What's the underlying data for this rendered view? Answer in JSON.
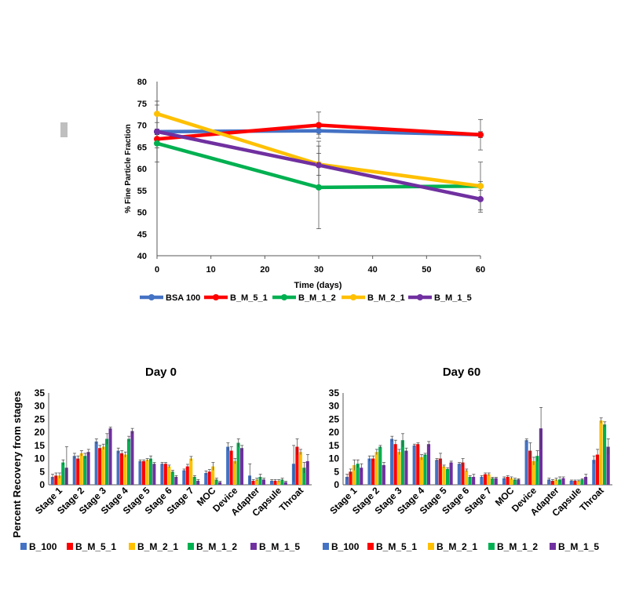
{
  "chart_data": [
    {
      "type": "line",
      "title": "",
      "xlabel": "Time (days)",
      "ylabel": "% Fine Particle Fraction",
      "xlim": [
        0,
        60
      ],
      "ylim": [
        40,
        80
      ],
      "xticks": [
        "0",
        "10",
        "20",
        "30",
        "40",
        "50",
        "60"
      ],
      "yticks": [
        "40",
        "45",
        "50",
        "55",
        "60",
        "65",
        "70",
        "75",
        "80"
      ],
      "legend_position": "bottom",
      "x": [
        0,
        30,
        60
      ],
      "series": [
        {
          "name": "BSA 100",
          "color": "#4472C4",
          "values": [
            68.5,
            68.7,
            67.8
          ],
          "errors": [
            0.6,
            0.8,
            0.7
          ]
        },
        {
          "name": "B_M_5_1",
          "color": "#FF0000",
          "values": [
            66.8,
            70.0,
            67.8
          ],
          "errors": [
            1.0,
            3.0,
            3.5
          ]
        },
        {
          "name": "B_M_1_2",
          "color": "#00B050",
          "values": [
            65.8,
            55.7,
            56.0
          ],
          "errors": [
            1.0,
            9.5,
            1.0
          ]
        },
        {
          "name": "B_M_2_1",
          "color": "#FFC000",
          "values": [
            72.6,
            61.0,
            56.0
          ],
          "errors": [
            2.0,
            2.5,
            5.5
          ]
        },
        {
          "name": "B_M_1_5",
          "color": "#7030A0",
          "values": [
            68.5,
            60.8,
            53.0
          ],
          "errors": [
            7.0,
            5.5,
            3.0
          ]
        }
      ]
    },
    {
      "type": "bar",
      "title": "Day 0",
      "ylabel": "Percent  Recovery from stages",
      "ylim": [
        0,
        35
      ],
      "yticks": [
        "0",
        "5",
        "10",
        "15",
        "20",
        "25",
        "30",
        "35"
      ],
      "legend_position": "bottom",
      "categories": [
        "Stage 1",
        "Stage 2",
        "Stage 3",
        "Stage 4",
        "Stage 5",
        "Stage 6",
        "Stage 7",
        "MOC",
        "Device",
        "Adapter",
        "Capsule",
        "Throat"
      ],
      "series": [
        {
          "name": "B_100",
          "color": "#4472C4",
          "values": [
            3,
            11,
            16.5,
            13,
            9,
            8,
            5.5,
            4.5,
            14.5,
            3.5,
            1.5,
            8
          ],
          "errors": [
            1,
            1,
            1,
            1,
            0.5,
            0.5,
            0.5,
            0.8,
            1.5,
            4.5,
            0.5,
            7
          ]
        },
        {
          "name": "B_M_5_1",
          "color": "#FF0000",
          "values": [
            3.5,
            10,
            14,
            12,
            9,
            8,
            7,
            5,
            13,
            1.5,
            1.5,
            14.5
          ],
          "errors": [
            1,
            1,
            1,
            1,
            0.5,
            0.5,
            0.8,
            0.8,
            1.5,
            0.5,
            0.5,
            3
          ]
        },
        {
          "name": "B_M_2_1",
          "color": "#FFC000",
          "values": [
            3.5,
            12,
            14.5,
            11.5,
            9.5,
            7,
            10,
            7,
            9,
            2,
            1.5,
            12.5
          ],
          "errors": [
            1,
            1,
            1,
            1,
            0.5,
            0.5,
            0.8,
            1.5,
            1,
            0.5,
            0.5,
            1
          ]
        },
        {
          "name": "B_M_1_2",
          "color": "#00B050",
          "values": [
            8.5,
            11,
            17.5,
            17.5,
            10,
            5,
            3,
            2,
            16,
            3,
            2,
            6.5
          ],
          "errors": [
            1,
            1,
            2,
            1,
            1,
            0.5,
            0.5,
            0.5,
            1.5,
            1,
            0.5,
            2
          ]
        },
        {
          "name": "B_M_1_5",
          "color": "#7030A0",
          "values": [
            6.5,
            12.5,
            21.5,
            20.5,
            8,
            3,
            1.5,
            1,
            14,
            2,
            1,
            9
          ],
          "errors": [
            8,
            1,
            0.5,
            1,
            0.5,
            0.5,
            0.5,
            0.3,
            1,
            0.5,
            0.3,
            2.5
          ]
        }
      ]
    },
    {
      "type": "bar",
      "title": "Day 60",
      "ylabel": "",
      "ylim": [
        0,
        35
      ],
      "yticks": [
        "0",
        "5",
        "10",
        "15",
        "20",
        "25",
        "30",
        "35"
      ],
      "legend_position": "bottom",
      "categories": [
        "Stage 1",
        "Stage 2",
        "Stage 3",
        "Stage 4",
        "Stage 5",
        "Stage 6",
        "Stage 7",
        "MOC",
        "Device",
        "Adapter",
        "Capsule",
        "Throat"
      ],
      "series": [
        {
          "name": "B_100",
          "color": "#4472C4",
          "values": [
            3,
            10,
            17.5,
            15,
            9.5,
            8,
            3,
            2.5,
            17,
            2,
            1.5,
            9.5
          ],
          "errors": [
            1,
            1,
            1,
            0.5,
            0.5,
            0.5,
            0.5,
            0.5,
            0.5,
            0.5,
            0.3,
            1.5
          ]
        },
        {
          "name": "B_M_5_1",
          "color": "#FF0000",
          "values": [
            5,
            10,
            15.5,
            15.5,
            10,
            8.5,
            4,
            3,
            13,
            1.5,
            1.5,
            11.5
          ],
          "errors": [
            1,
            1,
            1.5,
            0.5,
            2,
            1.5,
            0.5,
            0.5,
            3,
            0.5,
            0.3,
            2
          ]
        },
        {
          "name": "B_M_2_1",
          "color": "#FFC000",
          "values": [
            7.5,
            12.5,
            12.5,
            10.5,
            7,
            5.5,
            4,
            2.5,
            9,
            2,
            1.5,
            24.5
          ],
          "errors": [
            2,
            1,
            1,
            1,
            0.5,
            0.5,
            0.5,
            0.5,
            1.5,
            0.5,
            0.3,
            1
          ]
        },
        {
          "name": "B_M_1_2",
          "color": "#00B050",
          "values": [
            8,
            14.5,
            17,
            11.5,
            6,
            3,
            2.5,
            2,
            11,
            2,
            2,
            23
          ],
          "errors": [
            1.5,
            0.5,
            2.5,
            0.5,
            0.5,
            0.5,
            0.3,
            0.5,
            2,
            1,
            0.3,
            1
          ]
        },
        {
          "name": "B_M_1_5",
          "color": "#7030A0",
          "values": [
            6.5,
            7.5,
            13,
            15.5,
            8.5,
            3,
            2.5,
            2,
            21.5,
            2.5,
            3,
            14.5
          ],
          "errors": [
            1.5,
            1,
            1,
            1,
            0.5,
            1,
            0.3,
            0.3,
            8,
            0.5,
            1,
            3
          ]
        }
      ]
    }
  ]
}
